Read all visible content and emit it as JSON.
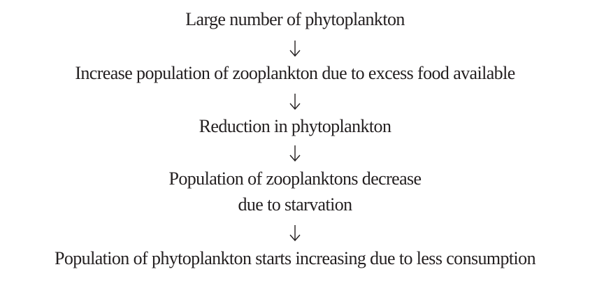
{
  "nodes": [
    {
      "lines": [
        "Large number of phytoplankton"
      ]
    },
    {
      "lines": [
        "Increase population of zooplankton due to excess food available"
      ]
    },
    {
      "lines": [
        "Reduction in phytoplankton"
      ]
    },
    {
      "lines": [
        "Population of zooplanktons decrease",
        "due to starvation"
      ]
    },
    {
      "lines": [
        "Population of phytoplankton starts increasing due to less consumption"
      ]
    }
  ]
}
